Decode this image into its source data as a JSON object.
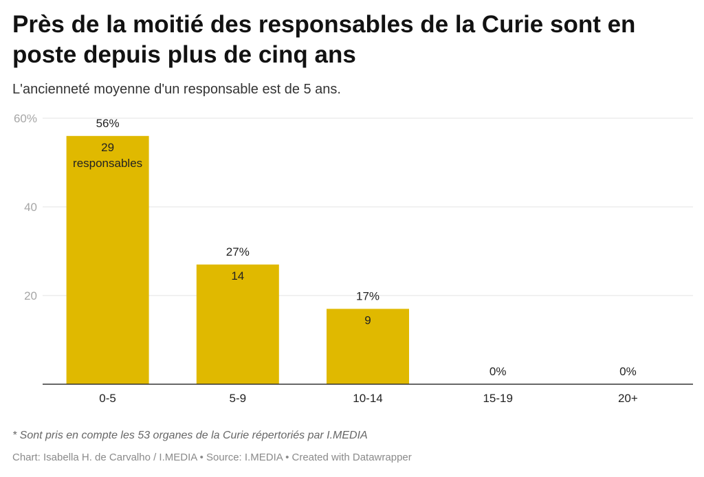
{
  "header": {
    "title": "Près de la moitié des responsables de la Curie sont en poste depuis plus de cinq ans",
    "subtitle": "L'ancienneté moyenne d'un responsable est de 5 ans."
  },
  "chart_data": {
    "type": "bar",
    "categories": [
      "0-5",
      "5-9",
      "10-14",
      "15-19",
      "20+"
    ],
    "values": [
      56,
      27,
      17,
      0,
      0
    ],
    "top_labels": [
      "56%",
      "27%",
      "17%",
      "0%",
      "0%"
    ],
    "inner_labels": [
      [
        "29",
        "responsables"
      ],
      [
        "14"
      ],
      [
        "9"
      ],
      [],
      []
    ],
    "ylim": [
      0,
      60
    ],
    "yticks": [
      20,
      40,
      60
    ],
    "ytick_labels": [
      "20",
      "40",
      "60%"
    ],
    "grid": true,
    "bar_color": "#e0b900"
  },
  "footer": {
    "note": "* Sont pris en compte les 53 organes de la Curie répertoriés par I.MEDIA",
    "credits": "Chart: Isabella H. de Carvalho / I.MEDIA • Source: I.MEDIA • Created with Datawrapper"
  }
}
